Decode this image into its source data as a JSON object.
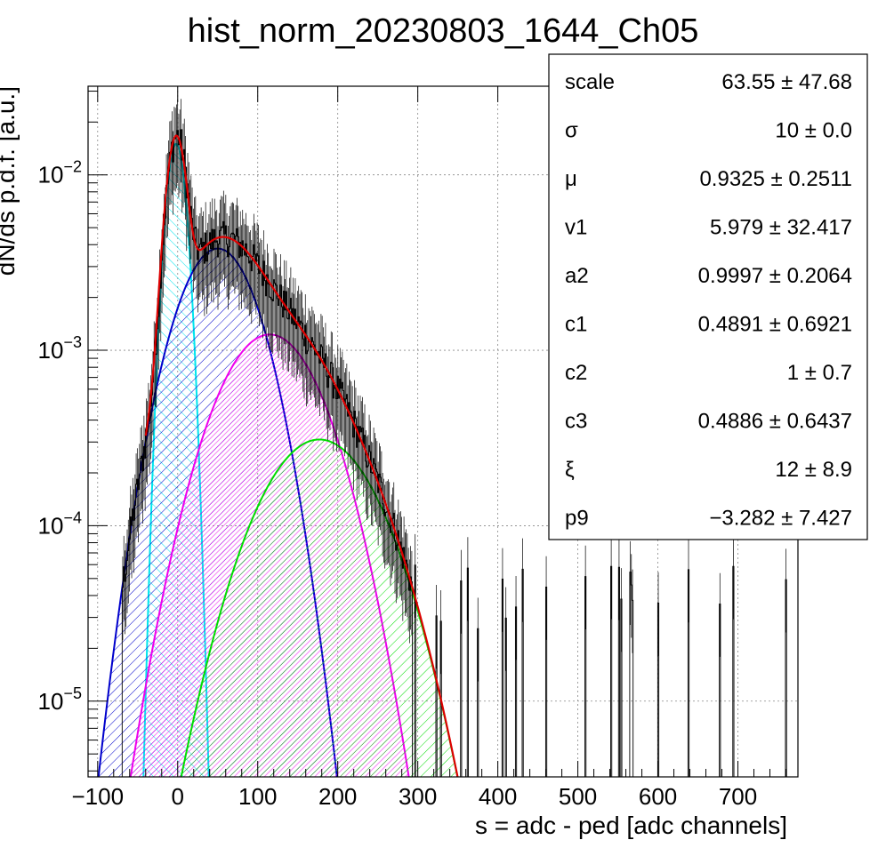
{
  "chart_data": {
    "type": "histogram",
    "title": "hist_norm_20230803_1644_Ch05",
    "xlabel": "s = adc - ped [adc channels]",
    "ylabel": "dN/ds p.d.f. [a.u.]",
    "xlim": [
      -112,
      775
    ],
    "ylim": [
      3.7e-06,
      0.032
    ],
    "yscale": "log",
    "grid": true,
    "x_ticks": [
      {
        "value": -100,
        "label": "−100"
      },
      {
        "value": 0,
        "label": "0"
      },
      {
        "value": 100,
        "label": "100"
      },
      {
        "value": 200,
        "label": "200"
      },
      {
        "value": 300,
        "label": "300"
      },
      {
        "value": 400,
        "label": "400"
      },
      {
        "value": 500,
        "label": "500"
      },
      {
        "value": 600,
        "label": "600"
      },
      {
        "value": 700,
        "label": "700"
      }
    ],
    "y_ticks": [
      {
        "value": 1e-05,
        "base": "10",
        "exp": "−5"
      },
      {
        "value": 0.0001,
        "base": "10",
        "exp": "−4"
      },
      {
        "value": 0.001,
        "base": "10",
        "exp": "−3"
      },
      {
        "value": 0.01,
        "base": "10",
        "exp": "−2"
      }
    ],
    "components": [
      {
        "color": "#00e5ee",
        "shape": "gaussian",
        "amplitude": 0.015,
        "mean": -2,
        "sigma": 10
      },
      {
        "color": "#0000cc",
        "shape": "gaussian",
        "amplitude": 0.0038,
        "mean": 50,
        "sigma": 40
      },
      {
        "color": "#ee00ee",
        "shape": "gaussian",
        "amplitude": 0.00123,
        "mean": 115,
        "sigma": 51
      },
      {
        "color": "#00dd00",
        "shape": "gaussian",
        "amplitude": 0.00031,
        "mean": 177,
        "sigma": 58
      }
    ],
    "total_fit_color": "#dd0000",
    "histogram_color": "#000000",
    "stats_box": {
      "position": "top-right",
      "rows": [
        {
          "name": "scale",
          "value": "63.55 ± 47.68"
        },
        {
          "name": "σ",
          "value": "10 ± 0.0"
        },
        {
          "name": "μ",
          "value": "0.9325 ± 0.2511"
        },
        {
          "name": "v1",
          "value": "5.979 ± 32.417"
        },
        {
          "name": "a2",
          "value": "0.9997 ± 0.2064"
        },
        {
          "name": "c1",
          "value": "0.4891 ± 0.6921"
        },
        {
          "name": "c2",
          "value": "1 ± 0.7"
        },
        {
          "name": "c3",
          "value": "0.4886 ± 0.6437"
        },
        {
          "name": "ξ",
          "value": "12 ± 8.9"
        },
        {
          "name": "p9",
          "value": "−3.282 ± 7.427"
        }
      ]
    }
  }
}
